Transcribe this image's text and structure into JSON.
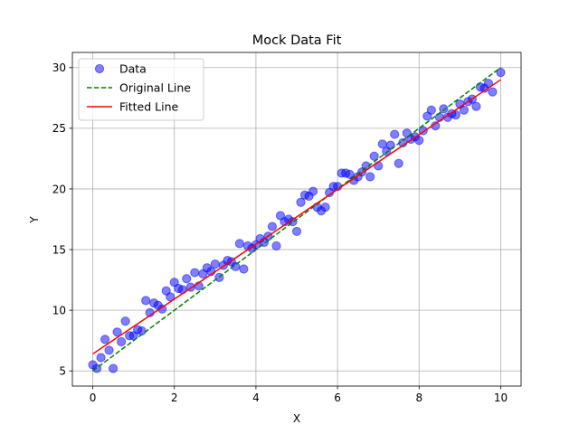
{
  "chart_data": {
    "type": "scatter",
    "title": "Mock Data Fit",
    "xlabel": "X",
    "ylabel": "Y",
    "xlim": [
      -0.5,
      10.5
    ],
    "ylim": [
      3.75,
      31.25
    ],
    "xticks": [
      0,
      2,
      4,
      6,
      8,
      10
    ],
    "yticks": [
      5,
      10,
      15,
      20,
      25,
      30
    ],
    "xtick_labels": [
      "0",
      "2",
      "4",
      "6",
      "8",
      "10"
    ],
    "ytick_labels": [
      "5",
      "10",
      "15",
      "20",
      "25",
      "30"
    ],
    "grid": true,
    "legend_position": "top-left",
    "series": [
      {
        "name": "Data",
        "kind": "scatter",
        "color": "#0000ff",
        "points": [
          [
            0.0,
            5.5
          ],
          [
            0.1,
            5.2
          ],
          [
            0.2,
            6.1
          ],
          [
            0.3,
            7.6
          ],
          [
            0.4,
            6.7
          ],
          [
            0.5,
            5.2
          ],
          [
            0.6,
            8.2
          ],
          [
            0.7,
            7.4
          ],
          [
            0.8,
            9.1
          ],
          [
            0.9,
            7.9
          ],
          [
            1.0,
            7.9
          ],
          [
            1.1,
            8.4
          ],
          [
            1.2,
            8.3
          ],
          [
            1.3,
            10.8
          ],
          [
            1.4,
            9.8
          ],
          [
            1.5,
            10.6
          ],
          [
            1.6,
            10.4
          ],
          [
            1.7,
            10.1
          ],
          [
            1.8,
            11.6
          ],
          [
            1.9,
            11.1
          ],
          [
            2.0,
            12.3
          ],
          [
            2.1,
            11.8
          ],
          [
            2.2,
            11.7
          ],
          [
            2.3,
            12.6
          ],
          [
            2.4,
            11.9
          ],
          [
            2.5,
            13.1
          ],
          [
            2.6,
            12.0
          ],
          [
            2.7,
            13.0
          ],
          [
            2.8,
            13.5
          ],
          [
            2.9,
            13.2
          ],
          [
            3.0,
            13.8
          ],
          [
            3.1,
            12.7
          ],
          [
            3.2,
            13.7
          ],
          [
            3.3,
            14.1
          ],
          [
            3.4,
            14.0
          ],
          [
            3.5,
            13.6
          ],
          [
            3.6,
            15.5
          ],
          [
            3.7,
            13.4
          ],
          [
            3.8,
            15.3
          ],
          [
            3.9,
            15.1
          ],
          [
            4.0,
            15.4
          ],
          [
            4.1,
            15.9
          ],
          [
            4.2,
            15.6
          ],
          [
            4.3,
            16.1
          ],
          [
            4.4,
            16.9
          ],
          [
            4.5,
            15.3
          ],
          [
            4.6,
            17.8
          ],
          [
            4.7,
            17.3
          ],
          [
            4.8,
            17.5
          ],
          [
            4.9,
            17.3
          ],
          [
            5.0,
            16.5
          ],
          [
            5.1,
            18.9
          ],
          [
            5.2,
            19.5
          ],
          [
            5.3,
            19.4
          ],
          [
            5.4,
            19.8
          ],
          [
            5.5,
            18.5
          ],
          [
            5.6,
            18.2
          ],
          [
            5.7,
            18.5
          ],
          [
            5.8,
            19.7
          ],
          [
            5.9,
            20.2
          ],
          [
            6.0,
            20.2
          ],
          [
            6.1,
            21.3
          ],
          [
            6.2,
            21.3
          ],
          [
            6.3,
            21.2
          ],
          [
            6.4,
            20.7
          ],
          [
            6.5,
            21.0
          ],
          [
            6.6,
            21.4
          ],
          [
            6.7,
            21.9
          ],
          [
            6.8,
            21.0
          ],
          [
            6.9,
            22.7
          ],
          [
            7.0,
            21.9
          ],
          [
            7.1,
            23.7
          ],
          [
            7.2,
            23.1
          ],
          [
            7.3,
            23.6
          ],
          [
            7.4,
            24.5
          ],
          [
            7.5,
            22.1
          ],
          [
            7.6,
            23.8
          ],
          [
            7.7,
            24.6
          ],
          [
            7.8,
            24.1
          ],
          [
            7.9,
            24.3
          ],
          [
            8.0,
            24.0
          ],
          [
            8.1,
            24.8
          ],
          [
            8.2,
            26.0
          ],
          [
            8.3,
            26.5
          ],
          [
            8.4,
            25.2
          ],
          [
            8.5,
            25.9
          ],
          [
            8.6,
            26.6
          ],
          [
            8.7,
            25.9
          ],
          [
            8.8,
            26.2
          ],
          [
            8.9,
            26.1
          ],
          [
            9.0,
            27.0
          ],
          [
            9.1,
            26.5
          ],
          [
            9.2,
            27.2
          ],
          [
            9.3,
            27.4
          ],
          [
            9.4,
            26.8
          ],
          [
            9.5,
            28.4
          ],
          [
            9.6,
            28.3
          ],
          [
            9.7,
            28.7
          ],
          [
            9.8,
            28.0
          ],
          [
            10.0,
            29.6
          ]
        ]
      },
      {
        "name": "Original Line",
        "kind": "line",
        "style": "dashed",
        "color": "#008000",
        "points": [
          [
            0,
            5.0
          ],
          [
            10,
            30.0
          ]
        ]
      },
      {
        "name": "Fitted Line",
        "kind": "line",
        "style": "solid",
        "color": "#ff0000",
        "points": [
          [
            0,
            6.4
          ],
          [
            10,
            29.0
          ]
        ]
      }
    ]
  }
}
